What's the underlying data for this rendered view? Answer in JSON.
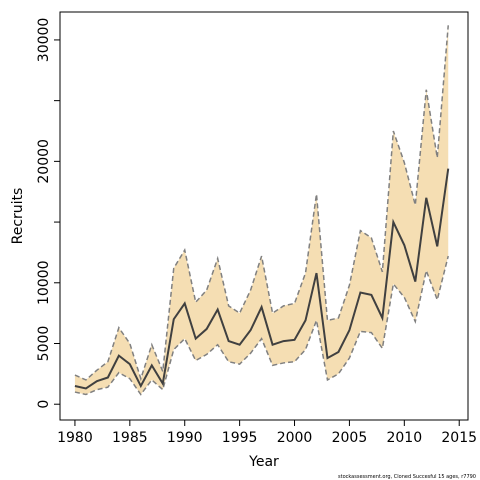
{
  "chart_data": {
    "type": "band-line",
    "x_label": "Year",
    "y_label": "Recruits",
    "footnote": "stockassessment.org, Cloned Succesful 15 ages, r7790",
    "x": [
      1980,
      1981,
      1982,
      1983,
      1984,
      1985,
      1986,
      1987,
      1988,
      1989,
      1990,
      1991,
      1992,
      1993,
      1994,
      1995,
      1996,
      1997,
      1998,
      1999,
      2000,
      2001,
      2002,
      2003,
      2004,
      2005,
      2006,
      2007,
      2008,
      2009,
      2010,
      2011,
      2012,
      2013,
      2014
    ],
    "values": [
      1500,
      1300,
      1900,
      2200,
      4000,
      3300,
      1500,
      3200,
      1700,
      7000,
      8300,
      5400,
      6200,
      7800,
      5200,
      4900,
      6100,
      8000,
      4900,
      5200,
      5300,
      6900,
      10800,
      3800,
      4300,
      6100,
      9200,
      9000,
      7100,
      15000,
      13100,
      10100,
      17000,
      13000,
      19400
    ],
    "upper": [
      2400,
      2000,
      2800,
      3500,
      6300,
      5000,
      2100,
      4900,
      2700,
      11200,
      12700,
      8400,
      9400,
      12000,
      8100,
      7500,
      9400,
      12200,
      7500,
      8100,
      8300,
      10800,
      17300,
      6900,
      7100,
      9800,
      14300,
      13700,
      10900,
      22500,
      19900,
      16400,
      25900,
      20300,
      31200
    ],
    "lower": [
      1000,
      800,
      1200,
      1400,
      2600,
      2100,
      800,
      2000,
      1200,
      4500,
      5400,
      3600,
      4100,
      4900,
      3500,
      3300,
      4200,
      5400,
      3200,
      3400,
      3500,
      4500,
      6900,
      2000,
      2500,
      3800,
      6000,
      5900,
      4600,
      9900,
      8800,
      6800,
      11000,
      8600,
      12200
    ],
    "line_color": "#404040",
    "band_color": "#f5deb3",
    "bound_color": "#808080",
    "xlim": [
      1978.64,
      2015.8
    ],
    "xticks": [
      1980,
      1985,
      1990,
      1995,
      2000,
      2005,
      2010,
      2015
    ],
    "ylim": [
      -1300,
      32300
    ],
    "yticks": [
      0,
      5000,
      10000,
      {
        "value": 15000,
        "label": null
      },
      20000,
      {
        "value": 25000,
        "label": null
      },
      30000
    ]
  }
}
